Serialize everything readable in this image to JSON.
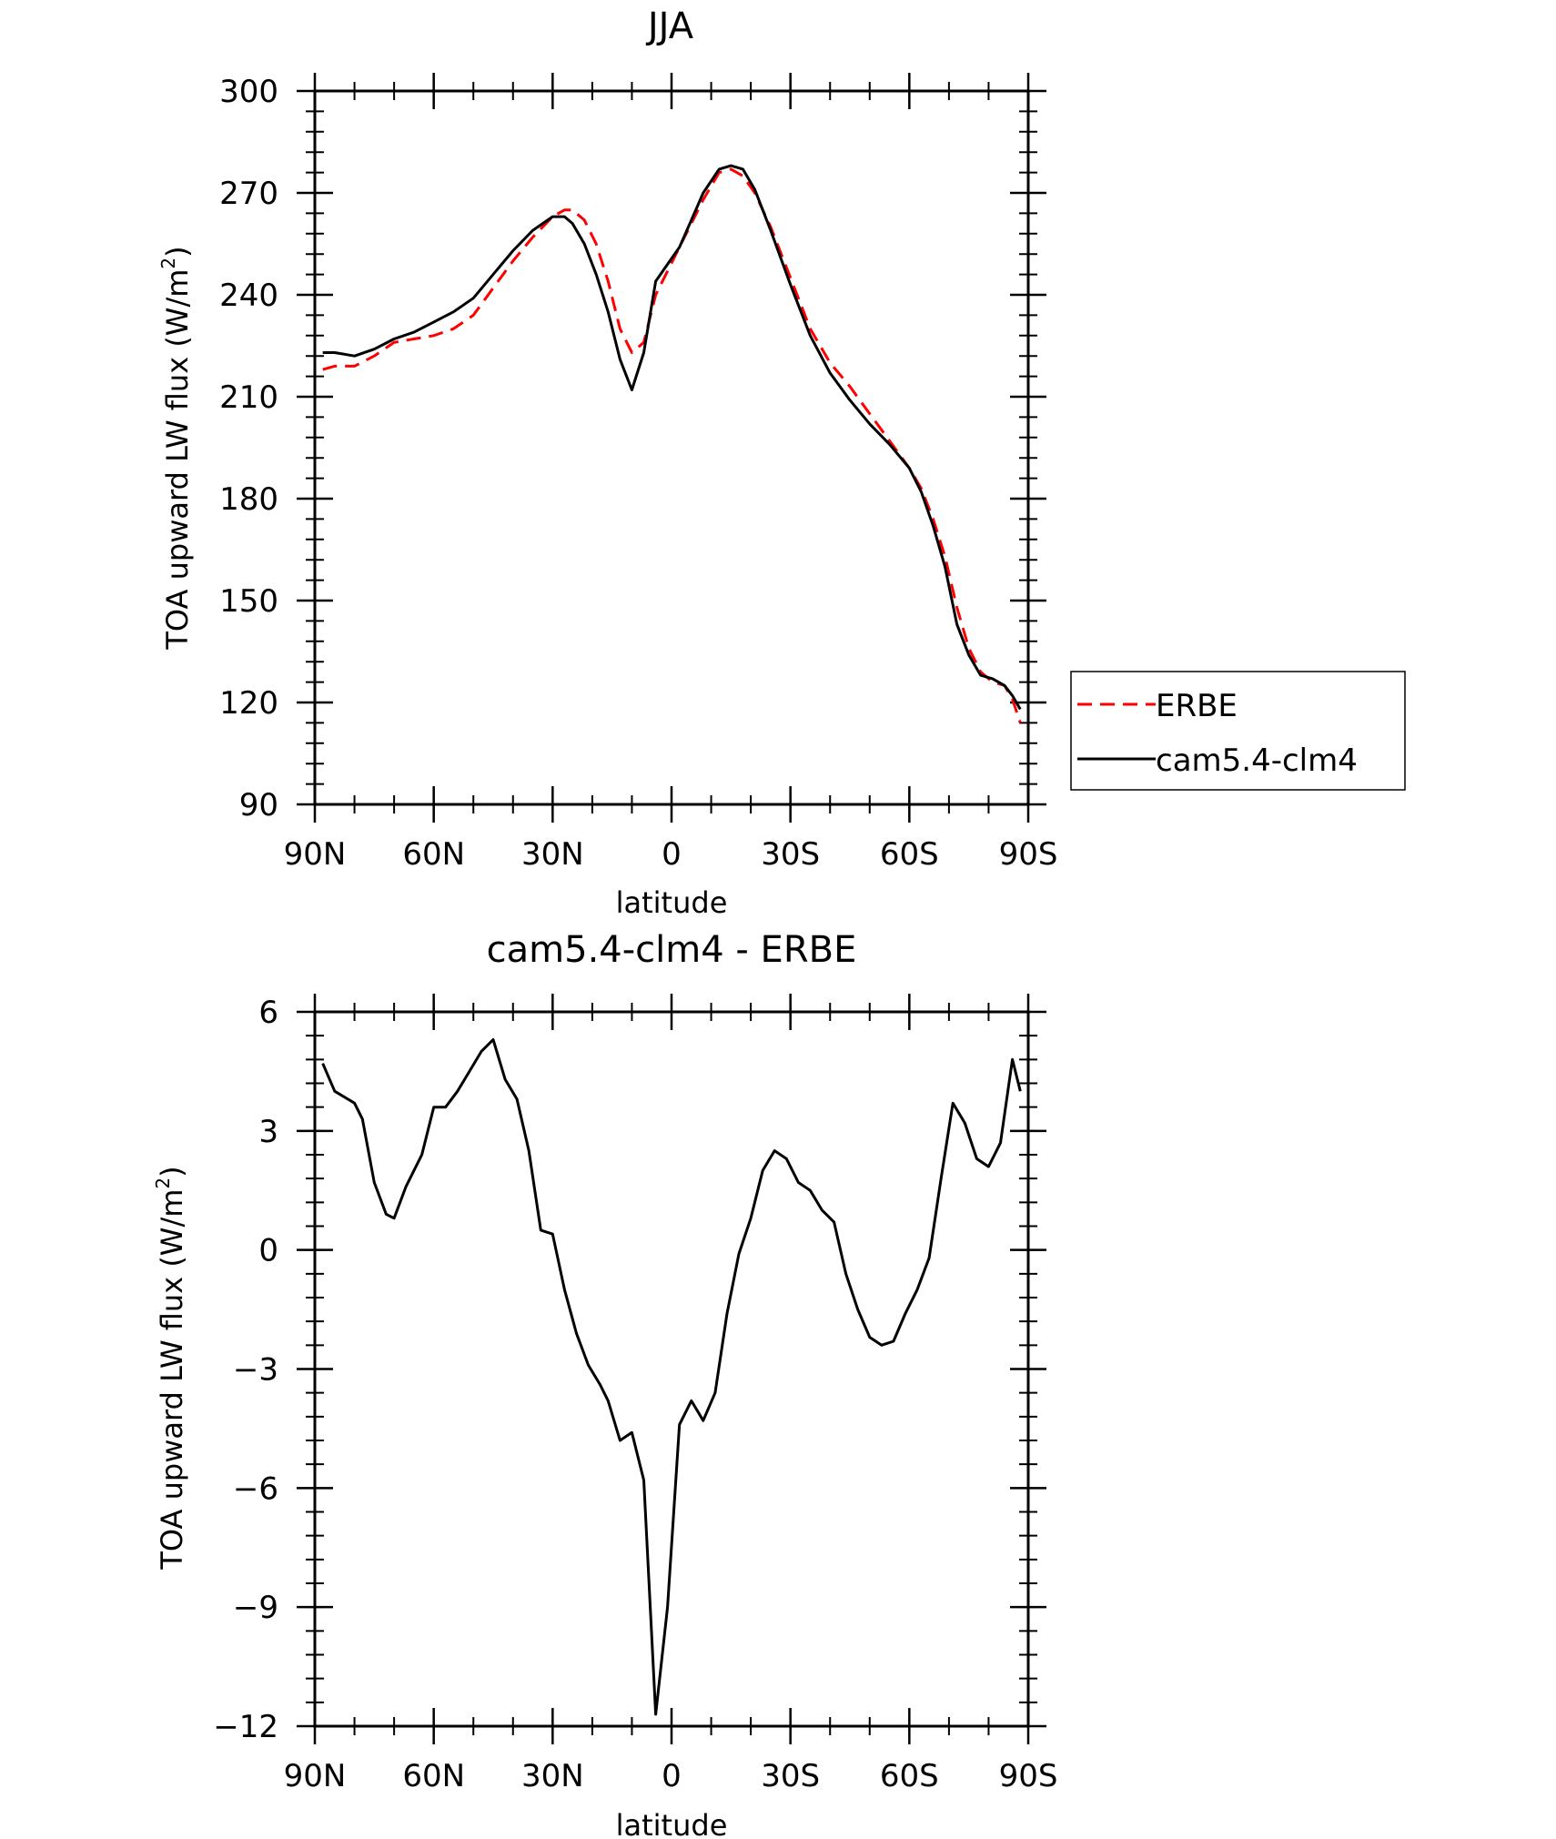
{
  "chart_data": [
    {
      "type": "line",
      "title": "JJA",
      "xlabel": "latitude",
      "ylabel": "TOA upward LW flux (W/m",
      "ylabel_sup": "2",
      "ylabel_close": ")",
      "xlim": [
        90,
        -90
      ],
      "ylim": [
        90,
        300
      ],
      "x_ticks": [
        90,
        60,
        30,
        0,
        -30,
        -60,
        -90
      ],
      "x_tick_labels": [
        "90N",
        "60N",
        "30N",
        "0",
        "30S",
        "60S",
        "90S"
      ],
      "y_ticks": [
        90,
        120,
        150,
        180,
        210,
        240,
        270,
        300
      ],
      "y_tick_labels": [
        "90",
        "120",
        "150",
        "180",
        "210",
        "240",
        "270",
        "300"
      ],
      "legend_position": "right",
      "series": [
        {
          "name": "ERBE",
          "color": "#ff0000",
          "dash": "dashed",
          "x": [
            88,
            85,
            80,
            75,
            70,
            65,
            60,
            55,
            50,
            45,
            40,
            35,
            30,
            27,
            25,
            22,
            19,
            16,
            13,
            10,
            7,
            4,
            1,
            -2,
            -5,
            -8,
            -12,
            -15,
            -18,
            -21,
            -25,
            -30,
            -35,
            -40,
            -45,
            -50,
            -55,
            -60,
            -63,
            -66,
            -69,
            -72,
            -75,
            -78,
            -81,
            -84,
            -86,
            -88
          ],
          "y": [
            218,
            219,
            219,
            222,
            226,
            227,
            228,
            230,
            234,
            242,
            250,
            257,
            263,
            265,
            265,
            262,
            255,
            244,
            230,
            223,
            226,
            240,
            247,
            254,
            261,
            268,
            276,
            277,
            275,
            270,
            260,
            245,
            230,
            220,
            213,
            205,
            197,
            189,
            183,
            174,
            163,
            148,
            136,
            129,
            126,
            125,
            121,
            114
          ]
        },
        {
          "name": "cam5.4-clm4",
          "color": "#000000",
          "dash": "solid",
          "x": [
            88,
            85,
            80,
            75,
            70,
            65,
            60,
            55,
            50,
            45,
            40,
            35,
            30,
            27,
            25,
            22,
            19,
            16,
            13,
            10,
            7,
            4,
            1,
            -2,
            -5,
            -8,
            -12,
            -15,
            -18,
            -21,
            -25,
            -30,
            -35,
            -40,
            -45,
            -50,
            -55,
            -60,
            -63,
            -66,
            -69,
            -72,
            -75,
            -78,
            -81,
            -84,
            -86,
            -88
          ],
          "y": [
            223,
            223,
            222,
            224,
            227,
            229,
            232,
            235,
            239,
            246,
            253,
            259,
            263,
            263,
            261,
            255,
            246,
            235,
            221,
            212,
            223,
            244,
            249,
            254,
            262,
            270,
            277,
            278,
            277,
            271,
            259,
            243,
            228,
            217,
            209,
            202,
            196,
            189,
            182,
            172,
            160,
            143,
            134,
            128,
            127,
            125,
            122,
            118
          ]
        }
      ]
    },
    {
      "type": "line",
      "title": "cam5.4-clm4 - ERBE",
      "xlabel": "latitude",
      "ylabel": "TOA upward LW flux (W/m",
      "ylabel_sup": "2",
      "ylabel_close": ")",
      "xlim": [
        90,
        -90
      ],
      "ylim": [
        -12,
        6
      ],
      "x_ticks": [
        90,
        60,
        30,
        0,
        -30,
        -60,
        -90
      ],
      "x_tick_labels": [
        "90N",
        "60N",
        "30N",
        "0",
        "30S",
        "60S",
        "90S"
      ],
      "y_ticks": [
        -12,
        -9,
        -6,
        -3,
        0,
        3,
        6
      ],
      "y_tick_labels": [
        "−12",
        "−9",
        "−6",
        "−3",
        "0",
        "3",
        "6"
      ],
      "series": [
        {
          "color": "#000000",
          "dash": "solid",
          "x": [
            88,
            85,
            80,
            78,
            75,
            72,
            70,
            67,
            63,
            60,
            57,
            54,
            51,
            48,
            45,
            42,
            39,
            36,
            33,
            30,
            27,
            24,
            21,
            18,
            16,
            13,
            10,
            7,
            4,
            1,
            -2,
            -5,
            -8,
            -11,
            -14,
            -17,
            -20,
            -23,
            -26,
            -29,
            -32,
            -35,
            -38,
            -41,
            -44,
            -47,
            -50,
            -53,
            -56,
            -59,
            -62,
            -65,
            -68,
            -71,
            -74,
            -77,
            -80,
            -83,
            -86,
            -88
          ],
          "y": [
            4.7,
            4.0,
            3.7,
            3.3,
            1.7,
            0.9,
            0.8,
            1.6,
            2.4,
            3.6,
            3.6,
            4.0,
            4.5,
            5.0,
            5.3,
            4.3,
            3.8,
            2.5,
            0.5,
            0.4,
            -1.0,
            -2.1,
            -2.9,
            -3.4,
            -3.8,
            -4.8,
            -4.6,
            -5.8,
            -11.7,
            -9.0,
            -4.4,
            -3.8,
            -4.3,
            -3.6,
            -1.6,
            -0.1,
            0.8,
            2.0,
            2.5,
            2.3,
            1.7,
            1.5,
            1.0,
            0.7,
            -0.6,
            -1.5,
            -2.2,
            -2.4,
            -2.3,
            -1.6,
            -1.0,
            -0.2,
            1.8,
            3.7,
            3.2,
            2.3,
            2.1,
            2.7,
            4.8,
            4.0
          ]
        }
      ]
    }
  ]
}
